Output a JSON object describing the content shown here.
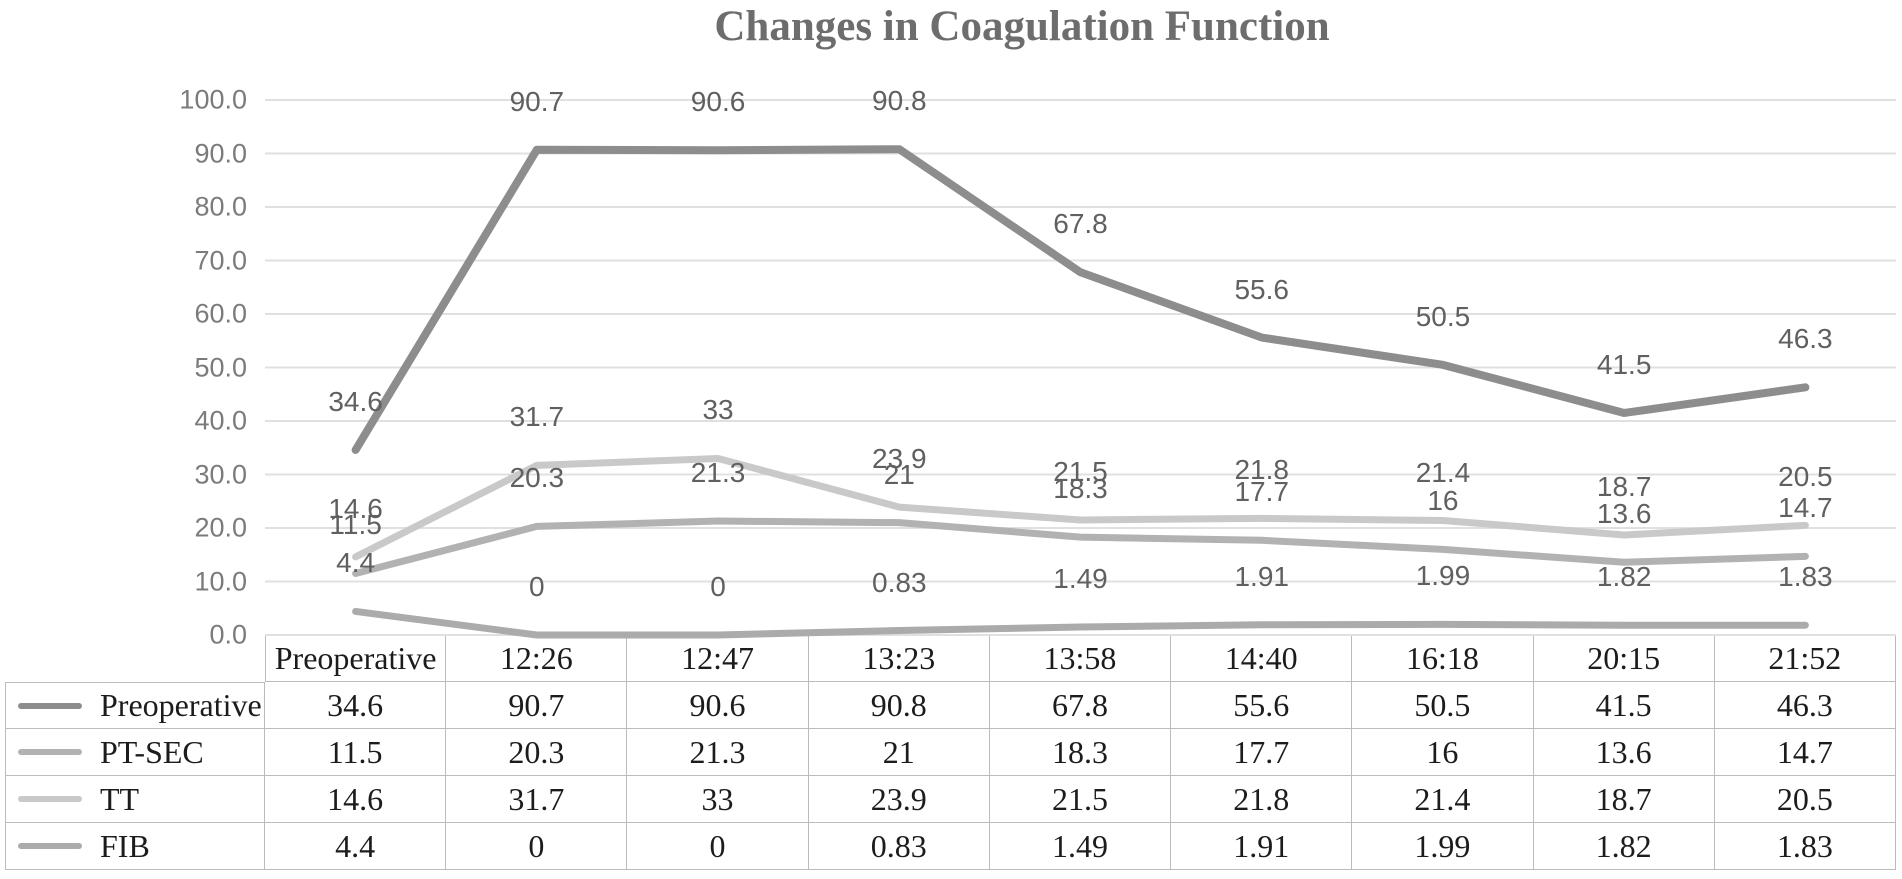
{
  "title": "Changes in Coagulation Function",
  "chart_data": {
    "type": "line",
    "title": "Changes in Coagulation Function",
    "categories": [
      "Preoperative",
      "12:26",
      "12:47",
      "13:23",
      "13:58",
      "14:40",
      "16:18",
      "20:15",
      "21:52"
    ],
    "series": [
      {
        "name": "Preoperative",
        "color": "#8d8d8d",
        "values": [
          "34.6",
          "90.7",
          "90.6",
          "90.8",
          "67.8",
          "55.6",
          "50.5",
          "41.5",
          "46.3"
        ]
      },
      {
        "name": "PT-SEC",
        "color": "#b2b2b2",
        "values": [
          "11.5",
          "20.3",
          "21.3",
          "21",
          "18.3",
          "17.7",
          "16",
          "13.6",
          "14.7"
        ]
      },
      {
        "name": "TT",
        "color": "#c9c9c9",
        "values": [
          "14.6",
          "31.7",
          "33",
          "23.9",
          "21.5",
          "21.8",
          "21.4",
          "18.7",
          "20.5"
        ]
      },
      {
        "name": "FIB",
        "color": "#ababab",
        "values": [
          "4.4",
          "0",
          "0",
          "0.83",
          "1.49",
          "1.91",
          "1.99",
          "1.82",
          "1.83"
        ]
      }
    ],
    "ylim": [
      0,
      100
    ],
    "y_tick_labels": [
      "100.0",
      "90.0",
      "80.0",
      "70.0",
      "60.0",
      "50.0",
      "40.0",
      "30.0",
      "20.0",
      "10.0",
      "0.0"
    ],
    "grid": true,
    "data_labels": true,
    "legend_position": "table-left-column",
    "xlabel": "",
    "ylabel": ""
  },
  "colors": {
    "title_text": "#6d6d6d",
    "tick_text": "#7b7b7b",
    "data_label_text": "#606060",
    "gridline": "#e0e0e0",
    "table_border": "#bcbcbc",
    "table_text": "#1c1c1c"
  }
}
